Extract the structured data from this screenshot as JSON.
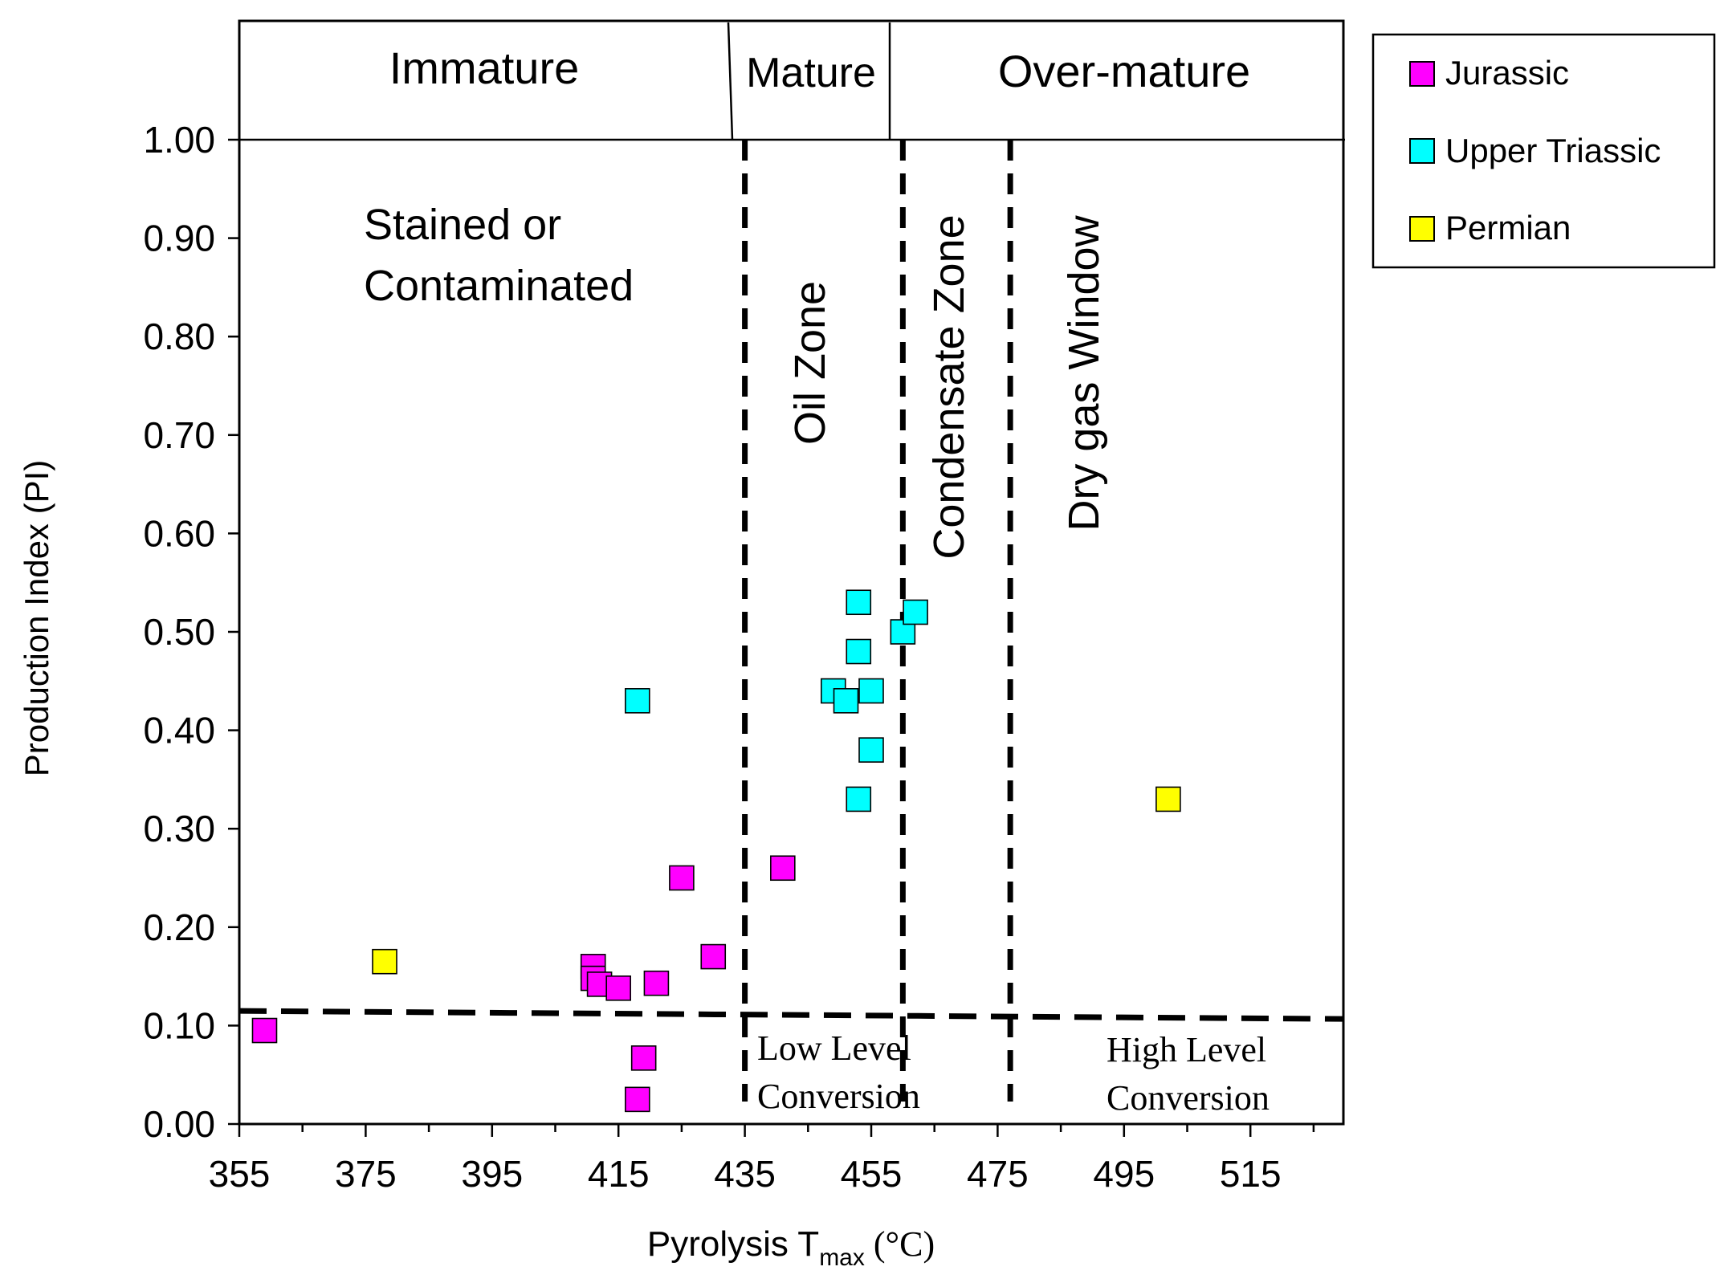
{
  "chart_data": {
    "type": "scatter",
    "xlabel": "Pyrolysis T",
    "xlabel_sub": "max",
    "xlabel_unit": " (°C)",
    "ylabel": "Production Index (PI)",
    "xlim": [
      355,
      529
    ],
    "ylim": [
      0,
      1
    ],
    "x_ticks": [
      355,
      375,
      395,
      415,
      435,
      455,
      475,
      495,
      515
    ],
    "x_tick_labels": [
      "355",
      "375",
      "395",
      "415",
      "435",
      "455",
      "475",
      "495",
      "515"
    ],
    "y_ticks": [
      0,
      0.1,
      0.2,
      0.3,
      0.4,
      0.5,
      0.6,
      0.7,
      0.8,
      0.9,
      1.0
    ],
    "y_tick_labels": [
      "0.00",
      "0.10",
      "0.20",
      "0.30",
      "0.40",
      "0.50",
      "0.60",
      "0.70",
      "0.80",
      "0.90",
      "1.00"
    ],
    "grid": false,
    "legend_position": "right",
    "top_band": {
      "labels": [
        "Immature",
        "Mature",
        "Over-mature"
      ]
    },
    "region_labels": {
      "stained": [
        "Stained or",
        "Contaminated"
      ],
      "oil_zone": "Oil Zone",
      "condensate_zone": "Condensate Zone",
      "dry_gas": "Dry gas Window",
      "low_level": [
        "Low Level",
        "Conversion"
      ],
      "high_level": [
        "High Level",
        "Conversion"
      ]
    },
    "boundaries": {
      "vertical_dashed_x": [
        435,
        460,
        477
      ],
      "horizontal_dashed_y": 0.11
    },
    "series": [
      {
        "name": "Jurassic",
        "color": "#ff00ff",
        "points": [
          [
            359,
            0.095
          ],
          [
            411,
            0.16
          ],
          [
            411,
            0.148
          ],
          [
            412,
            0.142
          ],
          [
            415,
            0.138
          ],
          [
            418,
            0.025
          ],
          [
            419,
            0.067
          ],
          [
            421,
            0.143
          ],
          [
            425,
            0.25
          ],
          [
            430,
            0.17
          ],
          [
            441,
            0.26
          ]
        ]
      },
      {
        "name": "Upper Triassic",
        "color": "#00ffff",
        "points": [
          [
            418,
            0.43
          ],
          [
            449,
            0.44
          ],
          [
            451,
            0.43
          ],
          [
            453,
            0.53
          ],
          [
            453,
            0.48
          ],
          [
            453,
            0.33
          ],
          [
            455,
            0.44
          ],
          [
            455,
            0.38
          ],
          [
            460,
            0.5
          ],
          [
            462,
            0.52
          ]
        ]
      },
      {
        "name": "Permian",
        "color": "#ffff00",
        "points": [
          [
            378,
            0.165
          ],
          [
            502,
            0.33
          ]
        ]
      }
    ]
  }
}
